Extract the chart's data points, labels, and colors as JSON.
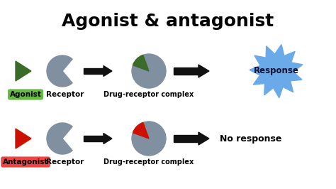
{
  "title": "Agonist & antagonist",
  "title_fontsize": 18,
  "title_fontweight": "bold",
  "bg_color": "#ffffff",
  "gray_color": "#8090a0",
  "agonist_color": "#3a6b28",
  "antagonist_color": "#cc1100",
  "arrow_color": "#111111",
  "response_bg": "#6aaae8",
  "response_text": "Response",
  "no_response_text": "No response",
  "agonist_label": "Agonist",
  "antagonist_label": "Antagonist",
  "receptor_label": "Receptor",
  "complex_label": "Drug-receptor complex",
  "agonist_box_color": "#66bb44",
  "antagonist_box_color": "#ee4444",
  "fig_w": 4.74,
  "fig_h": 2.66,
  "dpi": 100
}
